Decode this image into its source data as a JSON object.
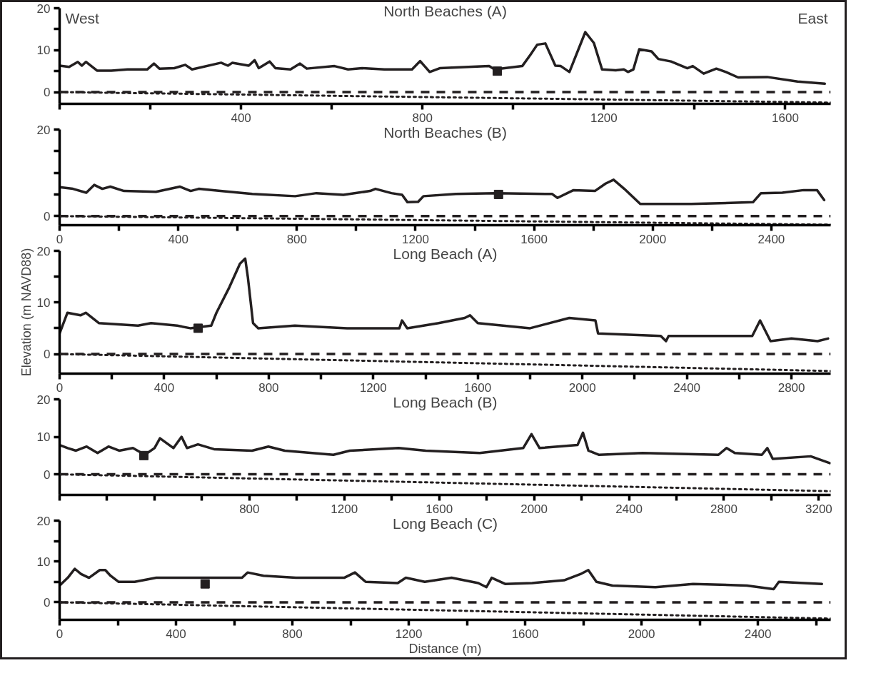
{
  "chart_data": [
    {
      "type": "line",
      "title": "North Beaches (A)",
      "annotations": [
        "West",
        "East"
      ],
      "xlim": [
        0,
        1700
      ],
      "ylim": [
        -2.8,
        20
      ],
      "xticks": [
        {
          "value": 0,
          "label": null
        },
        {
          "value": 200,
          "label": null
        },
        400,
        {
          "value": 600,
          "label": null
        },
        800,
        {
          "value": 1000,
          "label": null
        },
        1200,
        {
          "value": 1400,
          "label": null
        },
        1600
      ],
      "yticks": [
        0,
        {
          "value": 5,
          "label": null
        },
        10,
        {
          "value": 15,
          "label": null
        },
        20
      ],
      "grid": false,
      "ref_lines": [
        {
          "axis": "y",
          "value": 0,
          "line_style": "dashed",
          "color": "#231f20"
        }
      ],
      "series": [
        {
          "type": "line",
          "color": "#231f20",
          "line_style": "solid",
          "x": [
            0,
            21,
            40,
            49,
            58,
            83,
            114,
            150,
            193,
            208,
            220,
            253,
            277,
            292,
            356,
            371,
            381,
            417,
            430,
            439,
            463,
            476,
            509,
            530,
            545,
            606,
            636,
            667,
            716,
            777,
            795,
            816,
            838,
            947,
            959,
            1020,
            1038,
            1053,
            1071,
            1093,
            1105,
            1124,
            1159,
            1178,
            1196,
            1226,
            1244,
            1253,
            1265,
            1278,
            1305,
            1320,
            1348,
            1384,
            1396,
            1420,
            1448,
            1469,
            1496,
            1560,
            1627,
            1687
          ],
          "values": [
            6.3,
            6.0,
            7.2,
            6.3,
            7.2,
            5.1,
            5.1,
            5.4,
            5.4,
            6.8,
            5.6,
            5.7,
            6.5,
            5.4,
            7.0,
            6.3,
            7.0,
            6.3,
            7.6,
            5.7,
            7.3,
            5.7,
            5.4,
            6.8,
            5.6,
            6.2,
            5.4,
            5.7,
            5.4,
            5.4,
            7.4,
            4.8,
            5.7,
            6.2,
            5.4,
            6.2,
            8.9,
            11.3,
            11.6,
            6.3,
            6.2,
            4.8,
            14.3,
            11.7,
            5.4,
            5.2,
            5.4,
            4.8,
            5.4,
            10.2,
            9.7,
            7.9,
            7.3,
            5.7,
            6.2,
            4.4,
            5.6,
            4.8,
            3.5,
            3.6,
            2.5,
            2.0
          ]
        },
        {
          "type": "line",
          "color": "#231f20",
          "line_style": "dotted",
          "x": [
            0,
            1700
          ],
          "values": [
            0,
            -2.5
          ]
        },
        {
          "type": "scatter",
          "color": "#231f20",
          "marker": "square",
          "x": [
            965
          ],
          "values": [
            5
          ]
        }
      ]
    },
    {
      "type": "line",
      "title": "North Beaches (B)",
      "xlim": [
        0,
        2600
      ],
      "ylim": [
        -2.1,
        20
      ],
      "xticks": [
        0,
        {
          "value": 200,
          "label": null
        },
        400,
        {
          "value": 600,
          "label": null
        },
        800,
        {
          "value": 1000,
          "label": null
        },
        1200,
        {
          "value": 1400,
          "label": null
        },
        1600,
        {
          "value": 1800,
          "label": null
        },
        2000,
        {
          "value": 2200,
          "label": null
        },
        2400
      ],
      "yticks": [
        0,
        {
          "value": 5,
          "label": null
        },
        {
          "value": 10,
          "label": null
        },
        {
          "value": 15,
          "label": null
        },
        20
      ],
      "grid": false,
      "ref_lines": [
        {
          "axis": "y",
          "value": 0,
          "line_style": "dashed",
          "color": "#231f20"
        }
      ],
      "series": [
        {
          "type": "line",
          "color": "#231f20",
          "line_style": "solid",
          "x": [
            0,
            45,
            90,
            117,
            144,
            171,
            217,
            325,
            406,
            442,
            469,
            542,
            650,
            794,
            866,
            957,
            1047,
            1065,
            1119,
            1155,
            1173,
            1209,
            1227,
            1336,
            1471,
            1661,
            1679,
            1733,
            1805,
            1841,
            1868,
            1904,
            1958,
            2130,
            2338,
            2365,
            2437,
            2509,
            2554,
            2578
          ],
          "values": [
            6.7,
            6.3,
            5.4,
            7.2,
            6.3,
            6.8,
            5.8,
            5.6,
            6.8,
            5.8,
            6.3,
            5.8,
            5.1,
            4.6,
            5.3,
            4.9,
            5.8,
            6.3,
            5.3,
            4.9,
            3.2,
            3.3,
            4.6,
            5.1,
            5.3,
            5.1,
            4.2,
            6.0,
            5.8,
            7.5,
            8.4,
            6.3,
            2.8,
            2.8,
            3.2,
            5.3,
            5.4,
            6.0,
            6.0,
            3.7
          ]
        },
        {
          "type": "line",
          "color": "#231f20",
          "line_style": "dotted",
          "x": [
            0,
            2600
          ],
          "values": [
            0,
            -2
          ]
        },
        {
          "type": "scatter",
          "color": "#231f20",
          "marker": "square",
          "x": [
            1480
          ],
          "values": [
            5
          ]
        }
      ]
    },
    {
      "type": "line",
      "title": "Long Beach (A)",
      "ylabel": "Elevation (m NAVD88)",
      "xlim": [
        0,
        2950
      ],
      "ylim": [
        -3.8,
        20
      ],
      "xticks": [
        0,
        {
          "value": 200,
          "label": null
        },
        400,
        {
          "value": 600,
          "label": null
        },
        800,
        {
          "value": 1000,
          "label": null
        },
        1200,
        {
          "value": 1400,
          "label": null
        },
        1600,
        {
          "value": 1800,
          "label": null
        },
        2000,
        {
          "value": 2200,
          "label": null
        },
        2400,
        {
          "value": 2600,
          "label": null
        },
        2800
      ],
      "yticks": [
        0,
        {
          "value": 5,
          "label": null
        },
        10,
        {
          "value": 15,
          "label": null
        },
        20
      ],
      "grid": false,
      "ref_lines": [
        {
          "axis": "y",
          "value": 0,
          "line_style": "dashed",
          "color": "#231f20"
        }
      ],
      "series": [
        {
          "type": "line",
          "color": "#231f20",
          "line_style": "solid",
          "x": [
            0,
            30,
            80,
            100,
            150,
            300,
            350,
            450,
            500,
            580,
            600,
            650,
            690,
            710,
            720,
            740,
            760,
            900,
            1100,
            1300,
            1310,
            1330,
            1450,
            1550,
            1570,
            1600,
            1800,
            1950,
            2050,
            2060,
            2300,
            2320,
            2330,
            2650,
            2680,
            2720,
            2800,
            2900,
            2940
          ],
          "values": [
            4.0,
            8.0,
            7.5,
            8.0,
            6.0,
            5.5,
            6.0,
            5.5,
            5.0,
            5.5,
            8.0,
            13.0,
            17.5,
            18.5,
            15.0,
            6.0,
            5.0,
            5.5,
            5.0,
            5.0,
            6.5,
            5.0,
            6.0,
            7.0,
            7.5,
            6.0,
            5.0,
            7.0,
            6.5,
            4.0,
            3.5,
            2.5,
            3.5,
            3.5,
            6.5,
            2.5,
            3.0,
            2.5,
            3.0
          ]
        },
        {
          "type": "line",
          "color": "#231f20",
          "line_style": "dotted",
          "x": [
            0,
            2950
          ],
          "values": [
            0,
            -3.3
          ]
        },
        {
          "type": "scatter",
          "color": "#231f20",
          "marker": "square",
          "x": [
            530
          ],
          "values": [
            5
          ]
        }
      ]
    },
    {
      "type": "line",
      "title": "Long Beach (B)",
      "xlim": [
        0,
        3250
      ],
      "ylim": [
        -5.5,
        20
      ],
      "xticks": [
        {
          "value": 0,
          "label": null
        },
        {
          "value": 200,
          "label": null
        },
        {
          "value": 400,
          "label": null
        },
        {
          "value": 600,
          "label": null
        },
        800,
        {
          "value": 1000,
          "label": null
        },
        1200,
        {
          "value": 1400,
          "label": null
        },
        1600,
        {
          "value": 1800,
          "label": null
        },
        2000,
        {
          "value": 2200,
          "label": null
        },
        2400,
        {
          "value": 2600,
          "label": null
        },
        2800,
        {
          "value": 3000,
          "label": null
        },
        3200
      ],
      "yticks": [
        0,
        10,
        20
      ],
      "grid": false,
      "ref_lines": [
        {
          "axis": "y",
          "value": 0,
          "line_style": "dashed",
          "color": "#231f20"
        }
      ],
      "series": [
        {
          "type": "line",
          "color": "#231f20",
          "line_style": "solid",
          "x": [
            0,
            34,
            69,
            114,
            160,
            206,
            251,
            309,
            359,
            400,
            423,
            480,
            514,
            537,
            583,
            651,
            811,
            880,
            949,
            1154,
            1223,
            1429,
            1543,
            1771,
            1954,
            1989,
            2023,
            2183,
            2206,
            2229,
            2274,
            2457,
            2777,
            2811,
            2846,
            2960,
            2983,
            3006,
            3166,
            3246
          ],
          "values": [
            7.8,
            7.0,
            6.3,
            7.4,
            5.7,
            7.4,
            6.3,
            7.0,
            5.2,
            7.0,
            9.6,
            7.0,
            10.0,
            7.0,
            8.0,
            6.7,
            6.3,
            7.4,
            6.3,
            5.2,
            6.3,
            7.0,
            6.3,
            5.7,
            7.0,
            10.7,
            7.0,
            7.8,
            11.1,
            6.3,
            5.2,
            5.7,
            5.2,
            7.0,
            5.7,
            5.2,
            7.0,
            4.1,
            4.8,
            3.0
          ]
        },
        {
          "type": "line",
          "color": "#231f20",
          "line_style": "dotted",
          "x": [
            0,
            3250
          ],
          "values": [
            0,
            -4.5
          ]
        },
        {
          "type": "scatter",
          "color": "#231f20",
          "marker": "square",
          "x": [
            355
          ],
          "values": [
            5
          ]
        }
      ]
    },
    {
      "type": "line",
      "title": "Long Beach (C)",
      "xlabel": "Distance (m)",
      "xlim": [
        0,
        2650
      ],
      "ylim": [
        -4.3,
        20
      ],
      "xticks": [
        0,
        {
          "value": 200,
          "label": null
        },
        400,
        {
          "value": 600,
          "label": null
        },
        800,
        {
          "value": 1000,
          "label": null
        },
        1200,
        {
          "value": 1400,
          "label": null
        },
        1600,
        {
          "value": 1800,
          "label": null
        },
        2000,
        {
          "value": 2200,
          "label": null
        },
        2400,
        {
          "value": 2600,
          "label": null
        }
      ],
      "yticks": [
        0,
        {
          "value": 5,
          "label": null
        },
        10,
        {
          "value": 15,
          "label": null
        },
        20
      ],
      "grid": false,
      "ref_lines": [
        {
          "axis": "y",
          "value": 0,
          "line_style": "dashed",
          "color": "#231f20"
        }
      ],
      "series": [
        {
          "type": "line",
          "color": "#231f20",
          "line_style": "solid",
          "x": [
            0,
            28,
            52,
            74,
            101,
            138,
            157,
            175,
            203,
            258,
            332,
            517,
            627,
            646,
            701,
            812,
            978,
            1015,
            1052,
            1162,
            1190,
            1255,
            1347,
            1439,
            1467,
            1485,
            1531,
            1624,
            1734,
            1790,
            1817,
            1845,
            1900,
            2048,
            2177,
            2362,
            2454,
            2472,
            2620
          ],
          "values": [
            4.1,
            6.0,
            8.2,
            6.9,
            6.0,
            7.9,
            7.9,
            6.5,
            5.0,
            5.0,
            6.0,
            6.0,
            6.0,
            7.3,
            6.5,
            6.0,
            6.0,
            7.3,
            5.0,
            4.7,
            6.0,
            5.0,
            6.0,
            4.7,
            3.7,
            6.0,
            4.5,
            4.7,
            5.4,
            6.9,
            7.9,
            5.0,
            4.1,
            3.7,
            4.5,
            4.1,
            3.2,
            5.0,
            4.5
          ]
        },
        {
          "type": "line",
          "color": "#231f20",
          "line_style": "dotted",
          "x": [
            0,
            2650
          ],
          "values": [
            0,
            -4
          ]
        },
        {
          "type": "scatter",
          "color": "#231f20",
          "marker": "square",
          "x": [
            500
          ],
          "values": [
            4.5
          ]
        }
      ]
    }
  ]
}
